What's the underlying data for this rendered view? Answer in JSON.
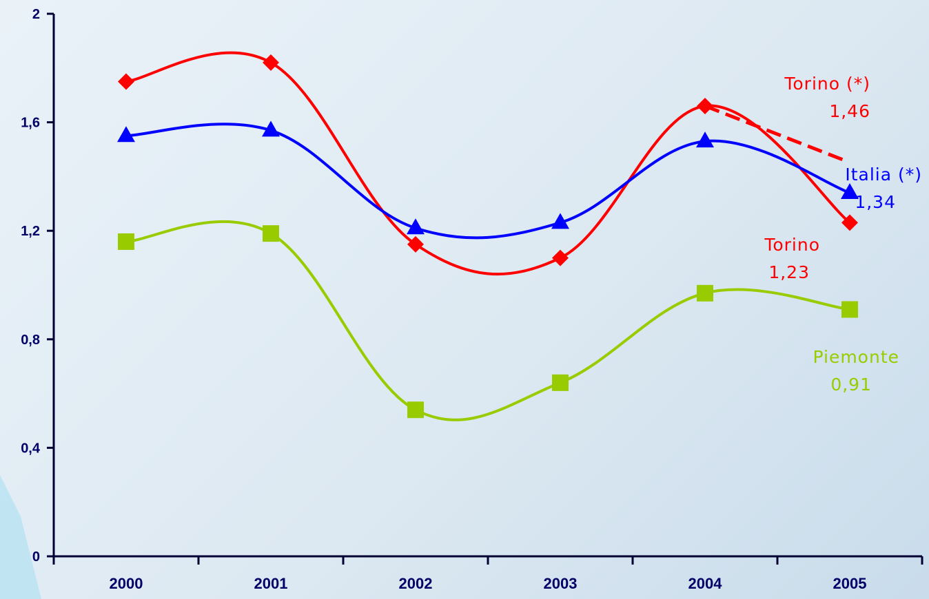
{
  "chart_data": {
    "type": "line",
    "categories": [
      "2000",
      "2001",
      "2002",
      "2003",
      "2004",
      "2005"
    ],
    "ylim": [
      0,
      2
    ],
    "yticks": [
      "0",
      "0,4",
      "0,8",
      "1,2",
      "1,6",
      "2"
    ],
    "ytick_values": [
      0,
      0.4,
      0.8,
      1.2,
      1.6,
      2.0
    ],
    "grid": false,
    "legend": "none",
    "smooth": true,
    "series": [
      {
        "key": "torino",
        "color": "#ff0000",
        "marker": "diamond",
        "values": [
          1.75,
          1.82,
          1.15,
          1.1,
          1.66,
          1.23
        ]
      },
      {
        "key": "italia",
        "color": "#0000ff",
        "marker": "triangle",
        "values": [
          1.55,
          1.57,
          1.21,
          1.23,
          1.53,
          1.34
        ]
      },
      {
        "key": "piemonte",
        "color": "#99cc00",
        "marker": "square",
        "values": [
          1.16,
          1.19,
          0.54,
          0.64,
          0.97,
          0.91
        ]
      }
    ],
    "projection": {
      "color": "#ff0000",
      "style": "dashed",
      "points": [
        {
          "x": "2004",
          "y": 1.66
        },
        {
          "x": "2005",
          "y": 1.46
        }
      ]
    },
    "annotations": [
      {
        "key": "torino_star",
        "lines": [
          "Torino (*)",
          "1,46"
        ],
        "color": "#ff0000"
      },
      {
        "key": "italia_star",
        "lines": [
          "Italia (*)",
          "1,34"
        ],
        "color": "#0000ff"
      },
      {
        "key": "torino",
        "lines": [
          "Torino",
          "1,23"
        ],
        "color": "#ff0000"
      },
      {
        "key": "piemonte",
        "lines": [
          "Piemonte",
          "0,91"
        ],
        "color": "#99cc00"
      }
    ]
  }
}
